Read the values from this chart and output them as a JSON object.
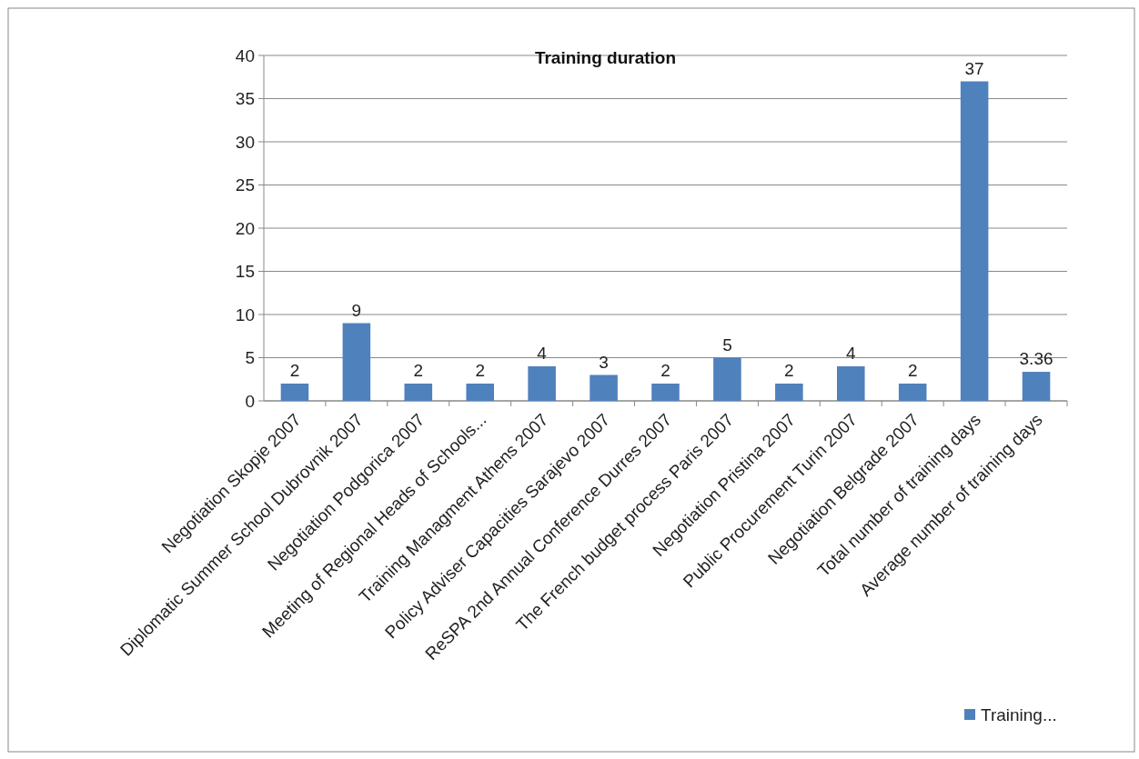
{
  "chart_data": {
    "type": "bar",
    "title": "Training duration",
    "categories": [
      "Negotiation Skopje 2007",
      "Diplomatic Summer School Dubrovnik 2007",
      "Negotiation Podgorica 2007",
      "Meeting of Regional Heads of Schools...",
      "Training Managment Athens 2007",
      "Policy Adviser Capacities Sarajevo 2007",
      "ReSPA 2nd Annual Conference Durres 2007",
      "The French budget process Paris 2007",
      "Negotiation Pristina 2007",
      "Public Procurement Turin 2007",
      "Negotiation Belgrade 2007",
      "Total number of training days",
      "Average number of training days"
    ],
    "series": [
      {
        "name": "Training...",
        "color": "#4f81bd",
        "values": [
          2,
          9,
          2,
          2,
          4,
          3,
          2,
          5,
          2,
          4,
          2,
          37,
          3.36
        ]
      }
    ],
    "ylim": [
      0,
      40
    ],
    "yticks": [
      0,
      5,
      10,
      15,
      20,
      25,
      30,
      35,
      40
    ],
    "grid": "y",
    "legend": "bottom right",
    "data_labels": true
  }
}
